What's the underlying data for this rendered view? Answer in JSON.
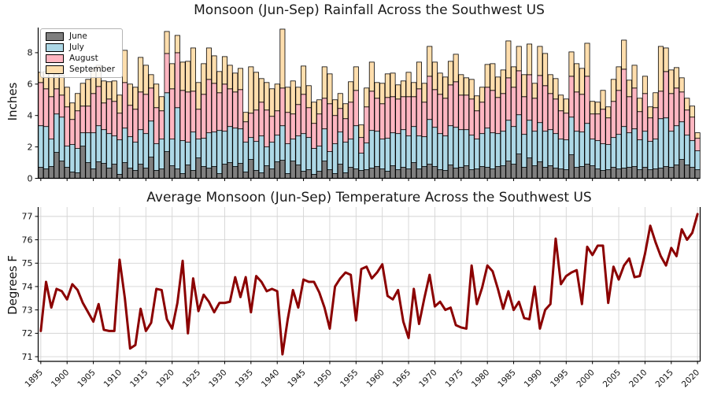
{
  "figure": {
    "background": "#ffffff",
    "text_color": "#1a1a1a",
    "grid_color": "#d4d4d4"
  },
  "chart_data": [
    {
      "type": "bar",
      "stacked": true,
      "title": "Monsoon (Jun-Sep) Rainfall Across the Southwest US",
      "xlabel": "",
      "ylabel": "Inches",
      "x_start": 1895,
      "x_end": 2020,
      "ylim": [
        0,
        9.6
      ],
      "yticks": [
        0,
        2,
        4,
        6,
        8
      ],
      "xticks": [
        1895,
        1900,
        1905,
        1910,
        1915,
        1920,
        1925,
        1930,
        1935,
        1940,
        1945,
        1950,
        1955,
        1960,
        1965,
        1970,
        1975,
        1980,
        1985,
        1990,
        1995,
        2000,
        2005,
        2010,
        2015,
        2020
      ],
      "grid": false,
      "legend_position": "upper-left",
      "series": [
        {
          "name": "June",
          "color": "#7f7f7f",
          "values": [
            0.7,
            0.6,
            0.75,
            1.65,
            1.1,
            0.7,
            0.4,
            0.35,
            2.05,
            1.0,
            0.6,
            1.05,
            0.95,
            0.65,
            0.9,
            0.25,
            1.0,
            0.65,
            0.5,
            0.9,
            0.65,
            1.35,
            0.5,
            0.6,
            1.7,
            0.8,
            0.6,
            0.3,
            0.85,
            0.5,
            1.3,
            0.75,
            0.65,
            0.75,
            0.3,
            0.9,
            1.0,
            0.75,
            0.95,
            0.4,
            1.2,
            0.5,
            0.35,
            0.8,
            0.6,
            1.05,
            1.15,
            0.3,
            1.1,
            0.85,
            0.45,
            0.55,
            0.25,
            0.45,
            1.1,
            0.55,
            0.3,
            0.9,
            0.35,
            0.7,
            0.6,
            0.5,
            0.55,
            0.65,
            0.75,
            0.6,
            0.45,
            0.8,
            0.55,
            0.7,
            0.6,
            1.0,
            0.6,
            0.75,
            0.9,
            0.75,
            0.55,
            0.5,
            0.85,
            0.65,
            0.7,
            0.8,
            0.55,
            0.6,
            0.75,
            0.7,
            0.6,
            0.75,
            0.8,
            1.1,
            0.9,
            1.55,
            0.7,
            1.3,
            0.8,
            1.05,
            0.7,
            0.8,
            0.65,
            0.6,
            0.55,
            1.5,
            0.7,
            0.75,
            0.9,
            0.8,
            0.6,
            0.5,
            0.55,
            0.7,
            0.6,
            0.65,
            0.7,
            0.75,
            0.55,
            0.7,
            0.55,
            0.6,
            0.65,
            0.75,
            0.7,
            0.85,
            1.2,
            0.85,
            0.7,
            0.55
          ]
        },
        {
          "name": "July",
          "color": "#add8e6",
          "values": [
            2.65,
            2.7,
            1.75,
            2.45,
            2.8,
            1.35,
            1.75,
            1.55,
            0.85,
            1.9,
            2.3,
            2.3,
            2.15,
            2.2,
            1.8,
            2.2,
            2.2,
            2.0,
            1.8,
            2.2,
            2.2,
            2.3,
            1.7,
            1.9,
            3.75,
            1.7,
            3.9,
            2.1,
            1.45,
            2.45,
            1.2,
            1.8,
            2.25,
            2.2,
            2.75,
            2.1,
            2.3,
            2.45,
            2.2,
            1.9,
            1.4,
            1.85,
            2.35,
            1.2,
            1.7,
            1.7,
            2.2,
            1.9,
            1.4,
            1.85,
            2.4,
            2.05,
            1.65,
            1.6,
            2.05,
            1.15,
            1.9,
            2.05,
            1.95,
            1.8,
            2.75,
            1.1,
            1.7,
            2.4,
            2.25,
            1.9,
            2.1,
            2.1,
            2.3,
            2.4,
            2.1,
            2.3,
            2.1,
            1.9,
            2.85,
            2.5,
            2.3,
            2.2,
            2.5,
            2.6,
            2.4,
            2.3,
            2.2,
            1.9,
            2.1,
            2.5,
            2.3,
            2.1,
            2.2,
            2.6,
            2.4,
            2.5,
            2.1,
            2.4,
            2.2,
            2.5,
            2.3,
            2.3,
            2.2,
            1.9,
            1.9,
            2.4,
            2.3,
            2.2,
            2.6,
            1.7,
            1.8,
            1.7,
            1.6,
            1.9,
            2.2,
            2.65,
            2.2,
            2.4,
            1.9,
            2.3,
            1.8,
            1.9,
            3.15,
            3.1,
            2.3,
            2.5,
            2.4,
            1.9,
            1.7,
            1.2
          ]
        },
        {
          "name": "August",
          "color": "#ffb6c1",
          "values": [
            2.75,
            2.4,
            2.7,
            1.6,
            1.4,
            2.5,
            1.6,
            2.4,
            1.7,
            1.7,
            2.5,
            2.5,
            1.7,
            2.2,
            2.2,
            1.7,
            2.9,
            2.0,
            2.1,
            2.4,
            2.5,
            2.1,
            2.3,
            1.8,
            2.5,
            3.2,
            3.5,
            3.2,
            3.2,
            2.6,
            1.9,
            2.8,
            3.4,
            3.1,
            2.4,
            3.0,
            2.4,
            2.3,
            2.5,
            1.3,
            1.55,
            2.0,
            2.15,
            2.35,
            1.65,
            1.55,
            2.4,
            2.0,
            1.6,
            2.0,
            2.5,
            1.9,
            1.6,
            2.05,
            1.95,
            3.05,
            1.8,
            1.5,
            1.5,
            2.35,
            2.25,
            1.0,
            2.3,
            2.5,
            2.1,
            2.25,
            2.6,
            2.3,
            2.2,
            2.1,
            2.5,
            1.9,
            3.0,
            2.2,
            2.75,
            2.4,
            2.5,
            2.4,
            2.6,
            2.9,
            2.2,
            2.2,
            2.3,
            1.8,
            2.0,
            2.6,
            2.7,
            2.3,
            2.4,
            2.7,
            2.5,
            2.8,
            2.4,
            2.9,
            2.1,
            3.0,
            2.9,
            2.3,
            2.2,
            1.8,
            1.7,
            2.6,
            2.5,
            2.4,
            3.0,
            1.6,
            1.7,
            2.2,
            1.7,
            2.3,
            2.8,
            3.65,
            2.3,
            2.6,
            1.8,
            2.4,
            1.5,
            2.0,
            1.75,
            2.95,
            2.4,
            2.4,
            1.9,
            1.6,
            1.5,
            0.8
          ]
        },
        {
          "name": "September",
          "color": "#ffdead",
          "values": [
            0.65,
            1.1,
            1.6,
            0.9,
            1.25,
            1.25,
            1.05,
            1.1,
            1.45,
            1.7,
            1.6,
            1.35,
            1.4,
            1.1,
            1.3,
            1.15,
            2.05,
            1.35,
            1.4,
            2.2,
            1.85,
            0.85,
            1.5,
            0.9,
            1.4,
            1.6,
            1.1,
            1.8,
            1.95,
            2.75,
            1.7,
            1.95,
            2.0,
            1.75,
            1.35,
            1.75,
            1.5,
            1.2,
            1.35,
            0.6,
            2.95,
            2.4,
            1.5,
            1.75,
            1.75,
            1.7,
            3.75,
            1.6,
            2.1,
            1.1,
            1.8,
            1.4,
            1.35,
            0.9,
            2.0,
            1.9,
            1.0,
            0.95,
            0.95,
            1.3,
            1.5,
            0.8,
            1.2,
            1.85,
            1.0,
            1.3,
            1.5,
            1.5,
            0.9,
            1.0,
            1.55,
            0.9,
            1.7,
            1.2,
            1.9,
            1.75,
            1.35,
            1.35,
            1.5,
            1.75,
            1.3,
            1.1,
            1.25,
            0.95,
            0.95,
            1.45,
            1.7,
            1.3,
            1.5,
            2.35,
            1.3,
            1.55,
            1.4,
            1.95,
            0.95,
            1.85,
            2.05,
            1.2,
            1.3,
            1.0,
            0.9,
            1.55,
            1.8,
            1.65,
            2.1,
            0.8,
            0.75,
            1.2,
            0.7,
            1.4,
            1.5,
            1.85,
            1.05,
            1.45,
            0.85,
            1.1,
            0.7,
            0.95,
            2.85,
            1.5,
            1.5,
            1.3,
            0.9,
            0.75,
            0.7,
            0.35
          ]
        }
      ]
    },
    {
      "type": "line",
      "title": "Average Monsoon (Jun-Sep) Temperature Across the Southwest US",
      "xlabel": "",
      "ylabel": "Degrees F",
      "color": "#8b0000",
      "line_width": 3,
      "x_start": 1895,
      "x_end": 2020,
      "ylim": [
        70.8,
        77.4
      ],
      "yticks": [
        71,
        72,
        73,
        74,
        75,
        76,
        77
      ],
      "xticks": [
        1895,
        1900,
        1905,
        1910,
        1915,
        1920,
        1925,
        1930,
        1935,
        1940,
        1945,
        1950,
        1955,
        1960,
        1965,
        1970,
        1975,
        1980,
        1985,
        1990,
        1995,
        2000,
        2005,
        2010,
        2015,
        2020
      ],
      "grid": true,
      "values": [
        72.1,
        74.2,
        73.1,
        73.9,
        73.8,
        73.45,
        74.1,
        73.85,
        73.3,
        72.9,
        72.5,
        73.25,
        72.15,
        72.1,
        72.1,
        75.15,
        73.5,
        71.35,
        71.5,
        73.05,
        72.1,
        72.45,
        73.9,
        73.85,
        72.6,
        72.2,
        73.3,
        75.1,
        72.0,
        74.35,
        72.95,
        73.65,
        73.35,
        72.9,
        73.3,
        73.3,
        73.35,
        74.4,
        73.55,
        74.4,
        72.9,
        74.45,
        74.2,
        73.8,
        73.9,
        73.8,
        71.1,
        72.6,
        73.85,
        73.1,
        74.3,
        74.2,
        74.2,
        73.75,
        73.1,
        72.2,
        74.0,
        74.35,
        74.6,
        74.5,
        72.55,
        74.75,
        74.85,
        74.35,
        74.6,
        74.95,
        73.6,
        73.45,
        73.85,
        72.5,
        71.8,
        73.9,
        72.4,
        73.5,
        74.5,
        73.15,
        73.35,
        73.0,
        73.1,
        72.35,
        72.25,
        72.2,
        74.9,
        73.25,
        73.95,
        74.9,
        74.65,
        73.9,
        73.05,
        73.8,
        73.0,
        73.35,
        72.65,
        72.6,
        74.0,
        72.2,
        73.0,
        73.25,
        76.05,
        74.1,
        74.45,
        74.6,
        74.7,
        73.25,
        75.7,
        75.35,
        75.75,
        75.75,
        73.3,
        74.85,
        74.3,
        74.9,
        75.2,
        74.4,
        74.45,
        75.4,
        76.6,
        75.9,
        75.3,
        74.9,
        75.65,
        75.3,
        76.45,
        76.0,
        76.3,
        77.1
      ]
    }
  ]
}
